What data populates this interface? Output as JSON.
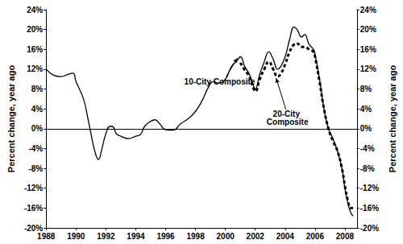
{
  "chart_data": {
    "type": "line",
    "ylabel": "Percent change, year ago",
    "y2label": "Percent change, year ago",
    "grid": false,
    "xlim": [
      1988,
      2008.8
    ],
    "xticks": [
      1988,
      1990,
      1992,
      1994,
      1996,
      1998,
      2000,
      2002,
      2004,
      2006,
      2008
    ],
    "ylim": [
      -20,
      24
    ],
    "yticks": [
      {
        "value": -20,
        "label": "-20%"
      },
      {
        "value": -16,
        "label": "-16%"
      },
      {
        "value": -12,
        "label": "-12%"
      },
      {
        "value": -8,
        "label": "-8%"
      },
      {
        "value": -4,
        "label": "-4%"
      },
      {
        "value": 0,
        "label": "0%"
      },
      {
        "value": 4,
        "label": "4%"
      },
      {
        "value": 8,
        "label": "8%"
      },
      {
        "value": 12,
        "label": "12%"
      },
      {
        "value": 16,
        "label": "16%"
      },
      {
        "value": 20,
        "label": "20%"
      },
      {
        "value": 24,
        "label": "24%"
      }
    ],
    "y2lim": [
      -20,
      24
    ],
    "y2ticks": [
      {
        "value": -20,
        "label": "-20%"
      },
      {
        "value": -16,
        "label": "-16%"
      },
      {
        "value": -12,
        "label": "-12%"
      },
      {
        "value": -8,
        "label": "-8%"
      },
      {
        "value": -4,
        "label": "-4%"
      },
      {
        "value": 0,
        "label": "0%"
      },
      {
        "value": 4,
        "label": "4%"
      },
      {
        "value": 8,
        "label": "8%"
      },
      {
        "value": 12,
        "label": "12%"
      },
      {
        "value": 16,
        "label": "16%"
      },
      {
        "value": 20,
        "label": "20%"
      },
      {
        "value": 24,
        "label": "24%"
      }
    ],
    "series": [
      {
        "name": "10-City Composite",
        "color": "#000000",
        "line_style": "solid",
        "x": [
          1988.0,
          1988.5,
          1989.0,
          1989.5,
          1989.8,
          1990.0,
          1990.5,
          1990.8,
          1991.0,
          1991.3,
          1991.5,
          1991.7,
          1992.0,
          1992.3,
          1992.5,
          1992.7,
          1993.0,
          1993.5,
          1994.0,
          1994.3,
          1994.6,
          1995.0,
          1995.3,
          1995.6,
          1996.0,
          1996.5,
          1997.0,
          1997.5,
          1998.0,
          1998.5,
          1998.8,
          1999.2,
          1999.5,
          2000.0,
          2000.4,
          2000.8,
          2001.0,
          2001.3,
          2001.6,
          2001.9,
          2002.0,
          2002.3,
          2002.6,
          2002.9,
          2003.2,
          2003.5,
          2003.7,
          2004.0,
          2004.3,
          2004.6,
          2004.8,
          2005.1,
          2005.3,
          2005.6,
          2005.9,
          2006.0,
          2006.3,
          2006.6,
          2006.9,
          2007.2,
          2007.5,
          2007.8,
          2008.0,
          2008.2,
          2008.4,
          2008.55
        ],
        "values": [
          12,
          10.8,
          10.5,
          11,
          11.2,
          9.5,
          6,
          2,
          -1,
          -5,
          -6.2,
          -4.5,
          -1,
          0.5,
          0.3,
          -1,
          -1.5,
          -2,
          -1.5,
          -1.2,
          0.5,
          1.5,
          1.8,
          1,
          -0.2,
          -0.3,
          1,
          2,
          3.5,
          6,
          8,
          9.5,
          9.2,
          10,
          12.5,
          13.8,
          14.5,
          12.5,
          11,
          8.5,
          8,
          11,
          13.5,
          15.5,
          14,
          12,
          12.5,
          14.5,
          18,
          20.5,
          20,
          18.5,
          19,
          17,
          16,
          15,
          10,
          4,
          0,
          -2,
          -4.5,
          -8,
          -12,
          -15,
          -17,
          -17.6
        ]
      },
      {
        "name": "20-City Composite",
        "color": "#000000",
        "line_style": "dashed",
        "x": [
          2001.0,
          2001.3,
          2001.6,
          2001.9,
          2002.0,
          2002.3,
          2002.6,
          2002.9,
          2003.2,
          2003.5,
          2003.7,
          2004.0,
          2004.3,
          2004.6,
          2004.8,
          2005.1,
          2005.3,
          2005.6,
          2005.9,
          2006.0,
          2006.3,
          2006.6,
          2006.9,
          2007.2,
          2007.5,
          2007.8,
          2008.0,
          2008.2,
          2008.4,
          2008.55
        ],
        "values": [
          13.3,
          11.8,
          10.5,
          8,
          7.5,
          10,
          12,
          13.5,
          12,
          10.5,
          11,
          13,
          15.5,
          17,
          17.2,
          16.5,
          16.5,
          16,
          15.5,
          14.5,
          9.5,
          4,
          0,
          -2.5,
          -4.5,
          -8,
          -11.5,
          -14.5,
          -16,
          -16
        ]
      }
    ],
    "annotations": [
      {
        "text": "10-City Composite",
        "x": 2000.8,
        "y": 14.2
      },
      {
        "text": "20-City Composite",
        "x": 2003.4,
        "y": 10.2
      }
    ]
  }
}
